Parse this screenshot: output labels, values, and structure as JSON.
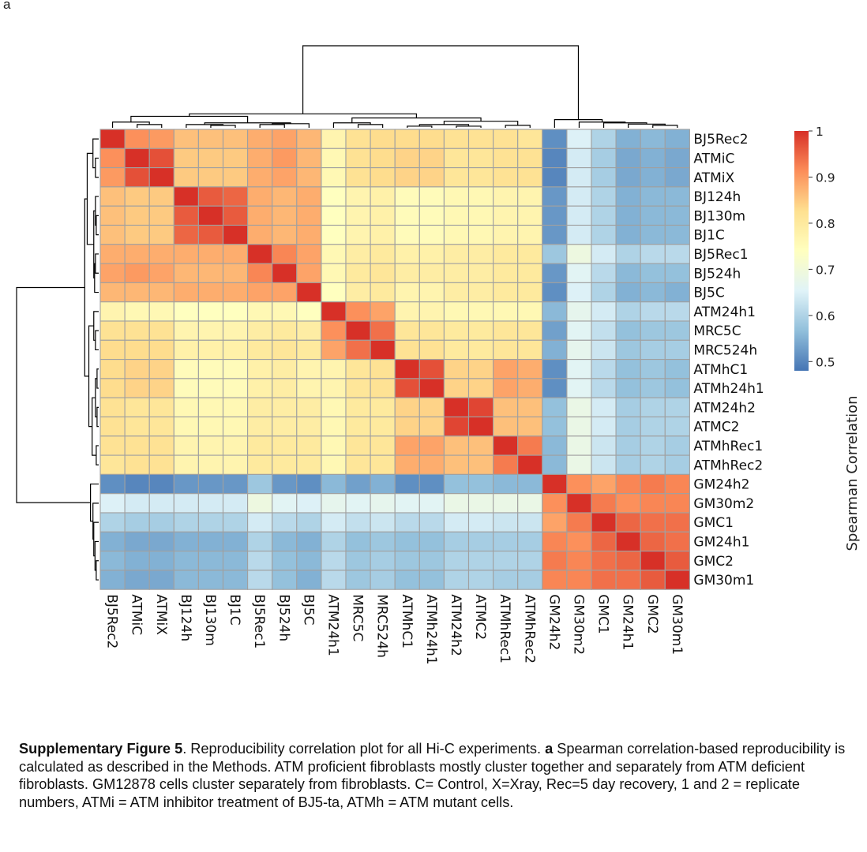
{
  "panel_label": "a",
  "caption": {
    "fig_label": "Supplementary Figure 5",
    "fig_text": ". Reproducibility correlation plot for all Hi-C experiments. ",
    "panel_ref": "a",
    "body_text": " Spearman correlation-based reproducibility is calculated as described in the Methods. ATM proficient fibroblasts mostly cluster together and separately from ATM deficient fibroblasts. GM12878 cells cluster separately from fibroblasts. C= Control, X=Xray, Rec=5 day recovery, 1 and 2 = replicate numbers, ATMi = ATM inhibitor treatment of BJ5-ta, ATMh = ATM mutant cells."
  },
  "chart_data": {
    "type": "heatmap",
    "labels": [
      "BJ5Rec2",
      "ATMiC",
      "ATMiX",
      "BJ124h",
      "BJ130m",
      "BJ1C",
      "BJ5Rec1",
      "BJ524h",
      "BJ5C",
      "ATM24h1",
      "MRC5C",
      "MRC524h",
      "ATMhC1",
      "ATMh24h1",
      "ATM24h2",
      "ATMC2",
      "ATMhRec1",
      "ATMhRec2",
      "GM24h2",
      "GM30m2",
      "GMC1",
      "GM24h1",
      "GMC2",
      "GM30m1"
    ],
    "values": [
      [
        1.0,
        0.91,
        0.9,
        0.86,
        0.86,
        0.86,
        0.88,
        0.89,
        0.87,
        0.77,
        0.82,
        0.83,
        0.83,
        0.83,
        0.82,
        0.82,
        0.82,
        0.81,
        0.51,
        0.65,
        0.6,
        0.55,
        0.56,
        0.55
      ],
      [
        0.91,
        1.0,
        0.97,
        0.85,
        0.85,
        0.85,
        0.88,
        0.9,
        0.87,
        0.76,
        0.82,
        0.83,
        0.84,
        0.84,
        0.81,
        0.81,
        0.82,
        0.82,
        0.5,
        0.64,
        0.59,
        0.54,
        0.55,
        0.54
      ],
      [
        0.9,
        0.97,
        1.0,
        0.85,
        0.85,
        0.85,
        0.88,
        0.89,
        0.87,
        0.76,
        0.82,
        0.83,
        0.84,
        0.84,
        0.81,
        0.81,
        0.82,
        0.82,
        0.5,
        0.64,
        0.59,
        0.54,
        0.55,
        0.54
      ],
      [
        0.86,
        0.85,
        0.85,
        1.0,
        0.96,
        0.95,
        0.88,
        0.87,
        0.88,
        0.74,
        0.77,
        0.78,
        0.75,
        0.75,
        0.76,
        0.76,
        0.77,
        0.77,
        0.52,
        0.64,
        0.6,
        0.55,
        0.56,
        0.56
      ],
      [
        0.86,
        0.85,
        0.85,
        0.96,
        1.0,
        0.96,
        0.88,
        0.87,
        0.88,
        0.74,
        0.77,
        0.78,
        0.75,
        0.75,
        0.76,
        0.76,
        0.77,
        0.77,
        0.52,
        0.64,
        0.6,
        0.55,
        0.56,
        0.56
      ],
      [
        0.86,
        0.85,
        0.85,
        0.95,
        0.96,
        1.0,
        0.88,
        0.87,
        0.88,
        0.74,
        0.77,
        0.78,
        0.75,
        0.75,
        0.76,
        0.76,
        0.77,
        0.77,
        0.52,
        0.64,
        0.6,
        0.55,
        0.56,
        0.56
      ],
      [
        0.88,
        0.88,
        0.88,
        0.88,
        0.88,
        0.88,
        1.0,
        0.92,
        0.89,
        0.76,
        0.79,
        0.8,
        0.78,
        0.78,
        0.79,
        0.79,
        0.8,
        0.8,
        0.58,
        0.69,
        0.64,
        0.6,
        0.61,
        0.61
      ],
      [
        0.89,
        0.9,
        0.89,
        0.87,
        0.87,
        0.87,
        0.92,
        1.0,
        0.89,
        0.76,
        0.8,
        0.81,
        0.79,
        0.79,
        0.79,
        0.79,
        0.8,
        0.8,
        0.52,
        0.66,
        0.61,
        0.56,
        0.57,
        0.57
      ],
      [
        0.87,
        0.87,
        0.87,
        0.88,
        0.88,
        0.88,
        0.89,
        0.89,
        1.0,
        0.74,
        0.79,
        0.8,
        0.77,
        0.77,
        0.79,
        0.79,
        0.8,
        0.8,
        0.51,
        0.65,
        0.6,
        0.55,
        0.56,
        0.55
      ],
      [
        0.77,
        0.76,
        0.76,
        0.74,
        0.74,
        0.74,
        0.76,
        0.76,
        0.74,
        1.0,
        0.91,
        0.89,
        0.77,
        0.77,
        0.76,
        0.76,
        0.76,
        0.76,
        0.56,
        0.67,
        0.64,
        0.6,
        0.61,
        0.61
      ],
      [
        0.82,
        0.82,
        0.82,
        0.77,
        0.77,
        0.77,
        0.79,
        0.8,
        0.79,
        0.91,
        1.0,
        0.94,
        0.81,
        0.81,
        0.8,
        0.8,
        0.81,
        0.81,
        0.53,
        0.66,
        0.62,
        0.57,
        0.58,
        0.58
      ],
      [
        0.83,
        0.83,
        0.83,
        0.78,
        0.78,
        0.78,
        0.8,
        0.81,
        0.8,
        0.89,
        0.94,
        1.0,
        0.82,
        0.82,
        0.8,
        0.8,
        0.81,
        0.81,
        0.55,
        0.67,
        0.63,
        0.58,
        0.59,
        0.59
      ],
      [
        0.83,
        0.84,
        0.84,
        0.75,
        0.75,
        0.75,
        0.78,
        0.79,
        0.77,
        0.77,
        0.81,
        0.82,
        1.0,
        0.97,
        0.84,
        0.84,
        0.89,
        0.88,
        0.51,
        0.66,
        0.61,
        0.57,
        0.58,
        0.57
      ],
      [
        0.83,
        0.84,
        0.84,
        0.75,
        0.75,
        0.75,
        0.78,
        0.79,
        0.77,
        0.77,
        0.81,
        0.82,
        0.97,
        1.0,
        0.84,
        0.84,
        0.89,
        0.88,
        0.51,
        0.66,
        0.61,
        0.57,
        0.58,
        0.57
      ],
      [
        0.82,
        0.81,
        0.81,
        0.76,
        0.76,
        0.76,
        0.79,
        0.79,
        0.79,
        0.76,
        0.8,
        0.8,
        0.84,
        0.84,
        1.0,
        0.98,
        0.86,
        0.86,
        0.57,
        0.68,
        0.64,
        0.59,
        0.6,
        0.6
      ],
      [
        0.82,
        0.81,
        0.81,
        0.76,
        0.76,
        0.76,
        0.79,
        0.79,
        0.79,
        0.76,
        0.8,
        0.8,
        0.84,
        0.84,
        0.98,
        1.0,
        0.86,
        0.86,
        0.57,
        0.68,
        0.64,
        0.59,
        0.6,
        0.6
      ],
      [
        0.82,
        0.82,
        0.82,
        0.77,
        0.77,
        0.77,
        0.8,
        0.8,
        0.8,
        0.76,
        0.81,
        0.81,
        0.89,
        0.89,
        0.86,
        0.86,
        1.0,
        0.93,
        0.56,
        0.68,
        0.63,
        0.59,
        0.6,
        0.59
      ],
      [
        0.81,
        0.82,
        0.82,
        0.77,
        0.77,
        0.77,
        0.8,
        0.8,
        0.8,
        0.76,
        0.81,
        0.81,
        0.88,
        0.88,
        0.86,
        0.86,
        0.93,
        1.0,
        0.56,
        0.68,
        0.63,
        0.59,
        0.6,
        0.59
      ],
      [
        0.51,
        0.5,
        0.5,
        0.52,
        0.52,
        0.52,
        0.58,
        0.52,
        0.51,
        0.56,
        0.53,
        0.55,
        0.51,
        0.51,
        0.57,
        0.57,
        0.56,
        0.56,
        1.0,
        0.91,
        0.89,
        0.92,
        0.93,
        0.92
      ],
      [
        0.65,
        0.64,
        0.64,
        0.64,
        0.64,
        0.64,
        0.69,
        0.66,
        0.65,
        0.67,
        0.66,
        0.67,
        0.66,
        0.66,
        0.68,
        0.68,
        0.68,
        0.68,
        0.91,
        1.0,
        0.93,
        0.91,
        0.92,
        0.92
      ],
      [
        0.6,
        0.59,
        0.59,
        0.6,
        0.6,
        0.6,
        0.64,
        0.61,
        0.6,
        0.64,
        0.62,
        0.63,
        0.61,
        0.61,
        0.64,
        0.64,
        0.63,
        0.63,
        0.89,
        0.93,
        1.0,
        0.95,
        0.94,
        0.94
      ],
      [
        0.55,
        0.54,
        0.54,
        0.55,
        0.55,
        0.55,
        0.6,
        0.56,
        0.55,
        0.6,
        0.57,
        0.58,
        0.57,
        0.57,
        0.59,
        0.59,
        0.59,
        0.59,
        0.92,
        0.91,
        0.95,
        1.0,
        0.95,
        0.94
      ],
      [
        0.56,
        0.55,
        0.55,
        0.56,
        0.56,
        0.56,
        0.61,
        0.57,
        0.56,
        0.61,
        0.58,
        0.59,
        0.58,
        0.58,
        0.6,
        0.6,
        0.6,
        0.6,
        0.93,
        0.92,
        0.94,
        0.95,
        1.0,
        0.96
      ],
      [
        0.55,
        0.54,
        0.54,
        0.56,
        0.56,
        0.56,
        0.61,
        0.57,
        0.55,
        0.61,
        0.58,
        0.59,
        0.57,
        0.57,
        0.6,
        0.6,
        0.59,
        0.59,
        0.92,
        0.92,
        0.94,
        0.94,
        0.96,
        1.0
      ]
    ],
    "colorbar": {
      "title": "Spearman Correlation",
      "ticks": [
        1,
        0.9,
        0.8,
        0.7,
        0.6,
        0.5
      ],
      "tick_labels": [
        "1",
        "0.9",
        "0.8",
        "0.7",
        "0.6",
        "0.5"
      ],
      "range": [
        0.48,
        1.0
      ],
      "colors": [
        "#4575b4",
        "#91bfdb",
        "#e0f3f8",
        "#ffffbf",
        "#fee090",
        "#fc8d59",
        "#d73027"
      ]
    },
    "cell_border_color": "#a0a0a0",
    "dendrogram_color": "#000000",
    "dendrogram": {
      "cluster_order": [
        "BJ5Rec2",
        "ATMiC",
        "ATMiX",
        "BJ124h",
        "BJ130m",
        "BJ1C",
        "BJ5Rec1",
        "BJ524h",
        "BJ5C",
        "ATM24h1",
        "MRC5C",
        "MRC524h",
        "ATMhC1",
        "ATMh24h1",
        "ATM24h2",
        "ATMC2",
        "ATMhRec1",
        "ATMhRec2",
        "GM24h2",
        "GM30m2",
        "GMC1",
        "GM24h1",
        "GMC2",
        "GM30m1"
      ]
    }
  }
}
